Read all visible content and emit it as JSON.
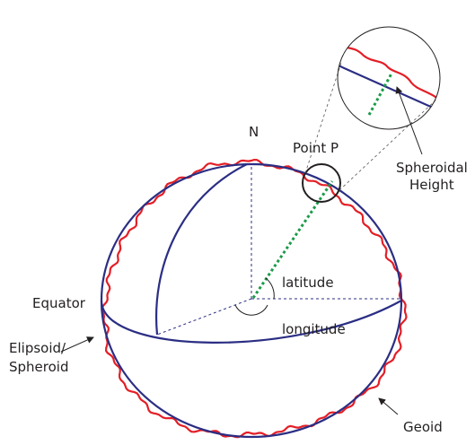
{
  "labels": {
    "north": "N",
    "point": "Point P",
    "spheroidal_height": [
      "Spheroidal",
      "Height"
    ],
    "latitude": "latitude",
    "longitude": "longitude",
    "equator": "Equator",
    "ellipsoid": [
      "Elipsoid/",
      "Spheroid"
    ],
    "geoid": "Geoid"
  }
}
